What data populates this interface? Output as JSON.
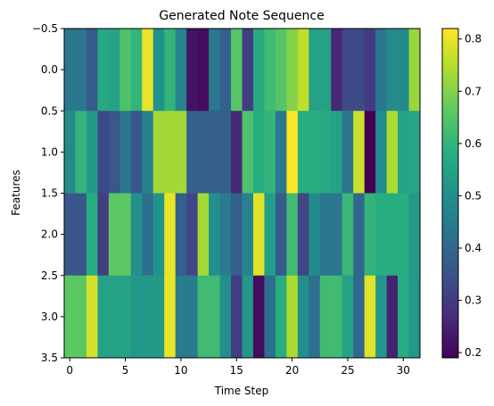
{
  "chart_data": {
    "type": "heatmap",
    "title": "Generated Note Sequence",
    "xlabel": "Time Step",
    "ylabel": "Features",
    "xlim": [
      -0.5,
      31.5
    ],
    "ylim": [
      3.5,
      -0.5
    ],
    "x_ticks": [
      0,
      5,
      10,
      15,
      20,
      25,
      30
    ],
    "x_tick_labels": [
      "0",
      "5",
      "10",
      "15",
      "20",
      "25",
      "30"
    ],
    "y_ticks": [
      -0.5,
      0.0,
      0.5,
      1.0,
      1.5,
      2.0,
      2.5,
      3.0,
      3.5
    ],
    "y_tick_labels": [
      "−0.5",
      "0.0",
      "0.5",
      "1.0",
      "1.5",
      "2.0",
      "2.5",
      "3.0",
      "3.5"
    ],
    "colormap": "viridis",
    "vmin": 0.19,
    "vmax": 0.82,
    "colorbar_ticks": [
      0.2,
      0.3,
      0.4,
      0.5,
      0.6,
      0.7,
      0.8
    ],
    "colorbar_tick_labels": [
      "0.2",
      "0.3",
      "0.4",
      "0.5",
      "0.6",
      "0.7",
      "0.8"
    ],
    "grid": false,
    "rows": [
      [
        0.44,
        0.44,
        0.37,
        0.57,
        0.55,
        0.64,
        0.6,
        0.8,
        0.51,
        0.6,
        0.47,
        0.22,
        0.21,
        0.44,
        0.38,
        0.65,
        0.3,
        0.57,
        0.62,
        0.65,
        0.7,
        0.76,
        0.55,
        0.55,
        0.26,
        0.33,
        0.33,
        0.3,
        0.44,
        0.49,
        0.49,
        0.72
      ],
      [
        0.49,
        0.6,
        0.53,
        0.33,
        0.36,
        0.44,
        0.36,
        0.46,
        0.73,
        0.73,
        0.73,
        0.38,
        0.38,
        0.38,
        0.38,
        0.26,
        0.64,
        0.58,
        0.6,
        0.44,
        0.82,
        0.58,
        0.58,
        0.57,
        0.55,
        0.44,
        0.77,
        0.19,
        0.49,
        0.74,
        0.55,
        0.56
      ],
      [
        0.36,
        0.36,
        0.58,
        0.3,
        0.66,
        0.66,
        0.5,
        0.42,
        0.51,
        0.8,
        0.38,
        0.32,
        0.73,
        0.5,
        0.45,
        0.38,
        0.47,
        0.79,
        0.54,
        0.37,
        0.62,
        0.32,
        0.49,
        0.44,
        0.44,
        0.61,
        0.4,
        0.6,
        0.58,
        0.58,
        0.58,
        0.53
      ],
      [
        0.66,
        0.66,
        0.78,
        0.55,
        0.55,
        0.55,
        0.52,
        0.52,
        0.53,
        0.8,
        0.45,
        0.45,
        0.62,
        0.62,
        0.5,
        0.3,
        0.52,
        0.21,
        0.42,
        0.58,
        0.74,
        0.5,
        0.42,
        0.62,
        0.62,
        0.55,
        0.4,
        0.79,
        0.52,
        0.25,
        0.58,
        0.52
      ]
    ]
  }
}
